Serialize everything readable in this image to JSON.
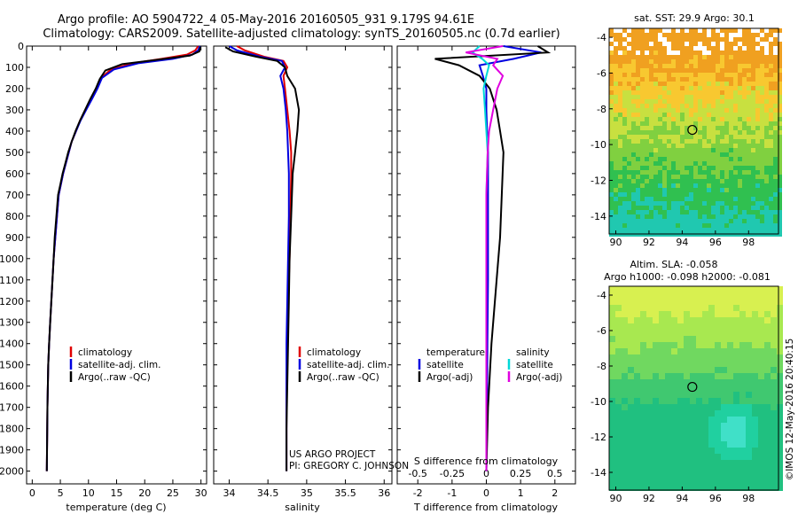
{
  "header": {
    "line1": "Argo profile: AO 5904722_4 05-May-2016 20160505_931 9.179S 94.61E",
    "line2": "Climatology: CARS2009. Satellite-adjusted climatology: synTS_20160505.nc (0.7d earlier)"
  },
  "credits": {
    "project": "US ARGO PROJECT",
    "pi": "PI: GREGORY C. JOHNSON",
    "imos": "©IMOS 12-May-2016 20:40:15"
  },
  "colors": {
    "climatology": "#e00000",
    "satellite_adj": "#0000e0",
    "argo": "#000000",
    "sal_satellite": "#00d8d8",
    "sal_argo": "#e000e0"
  },
  "chart_data": [
    {
      "type": "line",
      "xlabel": "temperature (deg C)",
      "ylabel": "",
      "xlim": [
        -1,
        31
      ],
      "ylim": [
        2060,
        0
      ],
      "xticks": [
        "0",
        "5",
        "10",
        "15",
        "20",
        "25",
        "30"
      ],
      "yticks": [
        "0",
        "100",
        "200",
        "300",
        "400",
        "500",
        "600",
        "700",
        "800",
        "900",
        "1000",
        "1100",
        "1200",
        "1300",
        "1400",
        "1500",
        "1600",
        "1700",
        "1800",
        "1900",
        "2000"
      ],
      "legend": [
        "climatology",
        "satellite-adj. clim.",
        "Argo(..raw -QC)"
      ],
      "series": [
        {
          "name": "climatology",
          "x": [
            29.5,
            29.0,
            27.5,
            23.0,
            18.0,
            14.0,
            12.2,
            11.5,
            10.5,
            9.5,
            8.5,
            7.8,
            7.0,
            6.5,
            6.0,
            5.5,
            5.1,
            4.7,
            4.4,
            4.1,
            3.8,
            3.6,
            3.4,
            3.2,
            3.0,
            2.85,
            2.7,
            2.6
          ],
          "y": [
            0,
            20,
            40,
            60,
            80,
            110,
            150,
            200,
            250,
            300,
            350,
            400,
            450,
            500,
            550,
            600,
            650,
            700,
            800,
            900,
            1000,
            1100,
            1200,
            1300,
            1400,
            1500,
            1700,
            2000
          ]
        },
        {
          "name": "satellite-adj. clim.",
          "x": [
            29.8,
            29.5,
            28.5,
            25.0,
            19.0,
            14.5,
            12.4,
            11.6,
            10.6,
            9.6,
            8.6,
            7.8,
            7.0,
            6.5,
            6.0,
            5.5,
            5.1,
            4.7,
            4.4,
            4.1,
            3.8,
            3.6,
            3.4,
            3.2,
            3.0,
            2.85,
            2.7,
            2.6
          ],
          "y": [
            0,
            20,
            40,
            60,
            80,
            110,
            150,
            200,
            250,
            300,
            350,
            400,
            450,
            500,
            550,
            600,
            650,
            700,
            800,
            900,
            1000,
            1100,
            1200,
            1300,
            1400,
            1500,
            1700,
            2000
          ]
        },
        {
          "name": "Argo(..raw -QC)",
          "x": [
            29.9,
            29.7,
            28.0,
            22.0,
            16.0,
            13.0,
            12.0,
            11.3,
            10.3,
            9.4,
            8.5,
            7.7,
            7.0,
            6.4,
            5.9,
            5.4,
            5.0,
            4.6,
            4.3,
            4.0,
            3.8,
            3.6,
            3.4,
            3.2,
            3.0,
            2.85,
            2.7,
            2.6
          ],
          "y": [
            5,
            25,
            45,
            65,
            85,
            115,
            155,
            200,
            250,
            300,
            350,
            400,
            450,
            500,
            550,
            600,
            650,
            700,
            800,
            900,
            1000,
            1100,
            1200,
            1300,
            1400,
            1500,
            1700,
            2000
          ]
        }
      ]
    },
    {
      "type": "line",
      "xlabel": "salinity",
      "ylabel": "",
      "xlim": [
        33.8,
        36.1
      ],
      "ylim": [
        2060,
        0
      ],
      "xticks": [
        "34",
        "34.5",
        "35",
        "35.5",
        "36"
      ],
      "legend": [
        "climatology",
        "satellite-adj. clim.",
        "Argo(..raw -QC)"
      ],
      "series": [
        {
          "name": "climatology",
          "x": [
            34.1,
            34.2,
            34.45,
            34.7,
            34.75,
            34.7,
            34.72,
            34.75,
            34.78,
            34.8,
            34.8,
            34.79,
            34.78,
            34.76,
            34.75,
            34.74,
            34.74,
            34.74
          ],
          "y": [
            0,
            20,
            50,
            70,
            100,
            140,
            200,
            300,
            400,
            500,
            600,
            800,
            1000,
            1200,
            1400,
            1600,
            1800,
            2000
          ]
        },
        {
          "name": "satellite-adj. clim.",
          "x": [
            34.0,
            34.1,
            34.4,
            34.68,
            34.72,
            34.66,
            34.7,
            34.73,
            34.75,
            34.76,
            34.77,
            34.77,
            34.76,
            34.75,
            34.74,
            34.74,
            34.74,
            34.74
          ],
          "y": [
            0,
            20,
            50,
            70,
            100,
            140,
            200,
            300,
            400,
            500,
            600,
            800,
            1000,
            1200,
            1400,
            1600,
            1800,
            2000
          ]
        },
        {
          "name": "Argo(..raw -QC)",
          "x": [
            33.95,
            34.05,
            34.35,
            34.62,
            34.72,
            34.75,
            34.85,
            34.9,
            34.88,
            34.85,
            34.82,
            34.8,
            34.78,
            34.77,
            34.76,
            34.75,
            34.74,
            34.74
          ],
          "y": [
            5,
            25,
            50,
            70,
            100,
            140,
            200,
            300,
            400,
            500,
            600,
            800,
            1000,
            1200,
            1400,
            1600,
            1800,
            2000
          ]
        }
      ]
    },
    {
      "type": "line",
      "xlabel": "T difference from climatology",
      "xlabel_top": "S difference from climatology",
      "xlim": [
        -2.6,
        2.6
      ],
      "ylim": [
        2060,
        0
      ],
      "xticks_bottom": [
        "-2",
        "-1",
        "0",
        "1",
        "2"
      ],
      "xticks_top": [
        "-0.5",
        "-0.25",
        "0",
        "0.25",
        "0.5"
      ],
      "legend_temperature": {
        "title": "temperature",
        "items": [
          "satellite",
          "Argo(-adj)"
        ]
      },
      "legend_salinity": {
        "title": "salinity",
        "items": [
          "satellite",
          "Argo(-adj)"
        ]
      },
      "series": [
        {
          "name": "temperature satellite",
          "x": [
            0.5,
            1.6,
            0.8,
            -0.2,
            -0.1,
            0.0,
            0.0,
            0.02,
            0.05,
            0.05,
            0.05,
            0.05,
            0.03,
            0.02,
            0.0
          ],
          "y": [
            0,
            30,
            60,
            90,
            140,
            200,
            300,
            400,
            500,
            700,
            900,
            1100,
            1400,
            1700,
            2000
          ]
        },
        {
          "name": "temperature Argo(-adj)",
          "x": [
            1.5,
            1.8,
            -1.5,
            -0.8,
            -0.2,
            0.1,
            0.3,
            0.4,
            0.5,
            0.45,
            0.4,
            0.3,
            0.15,
            0.05,
            0.0
          ],
          "y": [
            0,
            30,
            60,
            90,
            140,
            200,
            300,
            400,
            500,
            700,
            900,
            1100,
            1400,
            1700,
            2000
          ]
        },
        {
          "name": "salinity satellite",
          "x": [
            -0.05,
            -0.1,
            -0.03,
            0.02,
            0.0,
            -0.02,
            -0.01,
            0.0,
            0.01,
            0.0,
            0.0,
            0.0,
            0.0,
            0.0,
            0.0
          ],
          "y": [
            0,
            30,
            60,
            90,
            140,
            200,
            300,
            400,
            500,
            700,
            900,
            1100,
            1400,
            1700,
            2000
          ]
        },
        {
          "name": "salinity Argo(-adj)",
          "x": [
            0.12,
            -0.15,
            0.08,
            0.05,
            0.12,
            0.08,
            0.05,
            0.02,
            0.01,
            0.0,
            0.0,
            0.0,
            0.0,
            0.0,
            0.0
          ],
          "y": [
            0,
            30,
            60,
            90,
            140,
            200,
            300,
            400,
            500,
            700,
            900,
            1100,
            1400,
            1700,
            2000
          ]
        }
      ]
    },
    {
      "type": "heatmap",
      "title": "sat. SST: 29.9 Argo: 30.1",
      "xticks": [
        "90",
        "92",
        "94",
        "96",
        "98"
      ],
      "yticks": [
        "-4",
        "-6",
        "-8",
        "-10",
        "-12",
        "-14"
      ],
      "xlim": [
        89.6,
        99.8
      ],
      "ylim": [
        -15,
        -3.5
      ],
      "marker": {
        "lon": 94.61,
        "lat": -9.179
      }
    },
    {
      "type": "heatmap",
      "title": "Altim. SLA: -0.058",
      "subtitle": "Argo h1000: -0.098 h2000: -0.081",
      "xticks": [
        "90",
        "92",
        "94",
        "96",
        "98"
      ],
      "yticks": [
        "-4",
        "-6",
        "-8",
        "-10",
        "-12",
        "-14"
      ],
      "xlim": [
        89.6,
        99.8
      ],
      "ylim": [
        -15,
        -3.5
      ],
      "marker": {
        "lon": 94.61,
        "lat": -9.179
      }
    }
  ]
}
